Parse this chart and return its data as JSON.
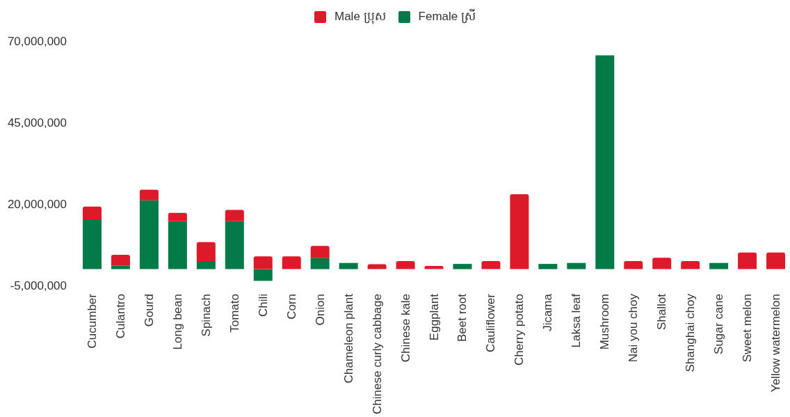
{
  "chart_data": {
    "type": "bar",
    "stacked": true,
    "categories": [
      "Cucumber",
      "Culantro",
      "Gourd",
      "Long bean",
      "Spinach",
      "Tomato",
      "Chili",
      "Corn",
      "Onion",
      "Chameleon plant",
      "Chinese curly cabbage",
      "Chinese kale",
      "Eggplant",
      "Beet root",
      "Cauliflower",
      "Cherry potato",
      "Jicama",
      "Laksa leaf",
      "Mushroom",
      "Nai you choy",
      "Shallot",
      "Shanghai choy",
      "Sugar cane",
      "Sweet melon",
      "Yellow watermelon"
    ],
    "series": [
      {
        "name": "Female ស្រី",
        "color": "#017a47",
        "values": [
          15300000,
          1100000,
          21100000,
          14700000,
          2500000,
          14700000,
          -3600000,
          null,
          3400000,
          1900000,
          null,
          null,
          null,
          1600000,
          null,
          null,
          1600000,
          1900000,
          65600000,
          null,
          null,
          null,
          1900000,
          null,
          null
        ]
      },
      {
        "name": "Male ប្រុស",
        "color": "#dc1a2a",
        "values": [
          3900000,
          3300000,
          3300000,
          2600000,
          5800000,
          3500000,
          3900000,
          3900000,
          3700000,
          null,
          1500000,
          2500000,
          1000000,
          null,
          2500000,
          23000000,
          null,
          null,
          null,
          2500000,
          3500000,
          2500000,
          null,
          5100000,
          5100000
        ]
      }
    ],
    "ylim": [
      -5000000,
      70000000
    ],
    "yticks": [
      {
        "value": -5000000,
        "label": "-5,000,000"
      },
      {
        "value": 20000000,
        "label": "20,000,000"
      },
      {
        "value": 45000000,
        "label": "45,000,000"
      },
      {
        "value": 70000000,
        "label": "70,000,000"
      }
    ],
    "legend": "top"
  }
}
